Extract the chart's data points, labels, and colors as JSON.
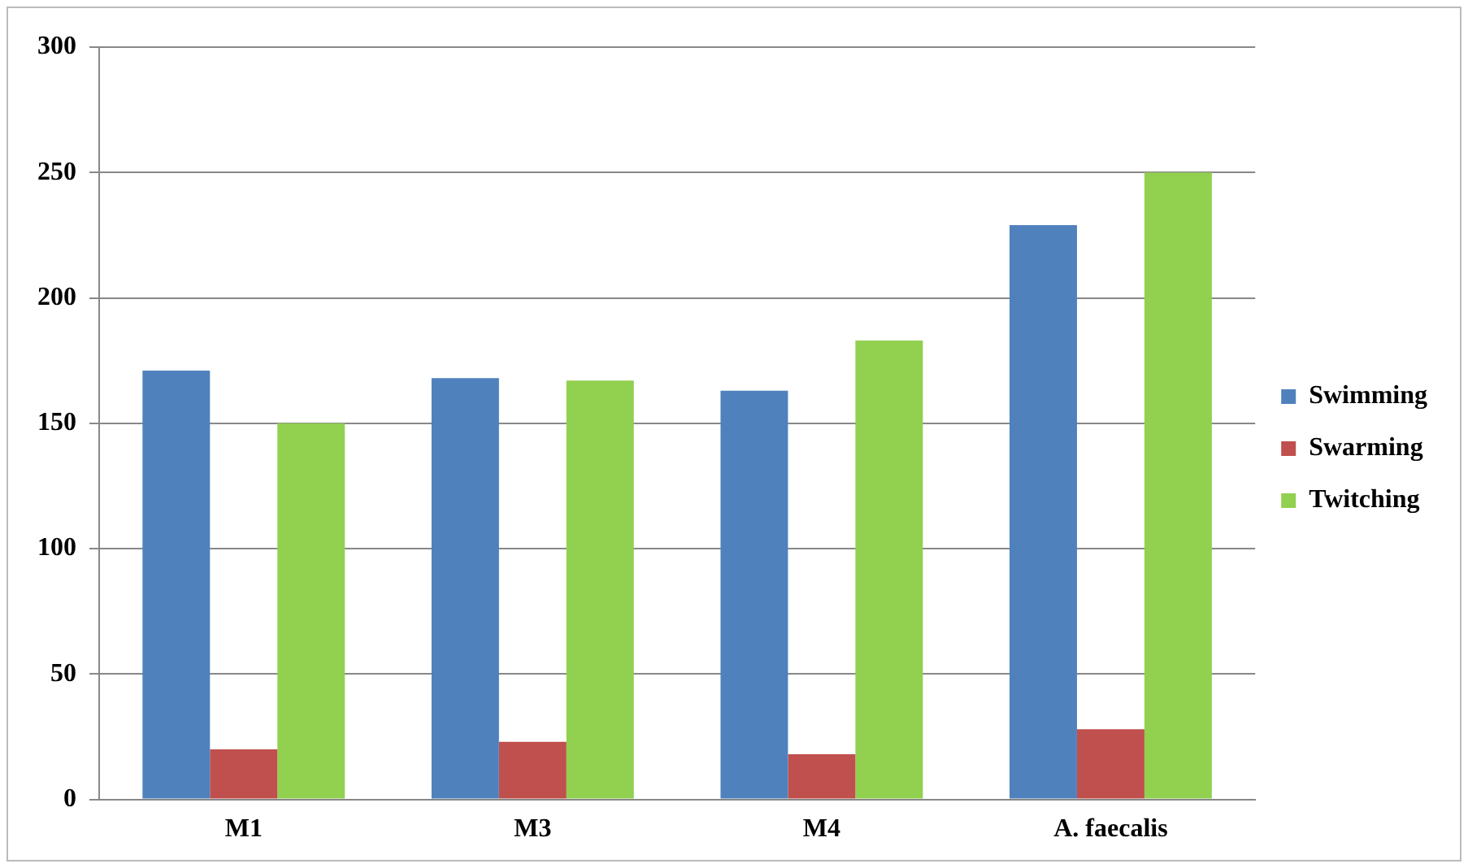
{
  "chart_data": {
    "type": "bar",
    "categories": [
      "M1",
      "M3",
      "M4",
      "A. faecalis"
    ],
    "series": [
      {
        "name": "Swimming",
        "color": "#4f81bd",
        "values": [
          171,
          168,
          163,
          229
        ]
      },
      {
        "name": "Swarming",
        "color": "#c0504d",
        "values": [
          20,
          23,
          18,
          28
        ]
      },
      {
        "name": "Twitching",
        "color": "#92d050",
        "values": [
          150,
          167,
          183,
          250
        ]
      }
    ],
    "ylim": [
      0,
      300
    ],
    "yticks": [
      0,
      50,
      100,
      150,
      200,
      250,
      300
    ],
    "grid": "y",
    "legend": "right"
  }
}
